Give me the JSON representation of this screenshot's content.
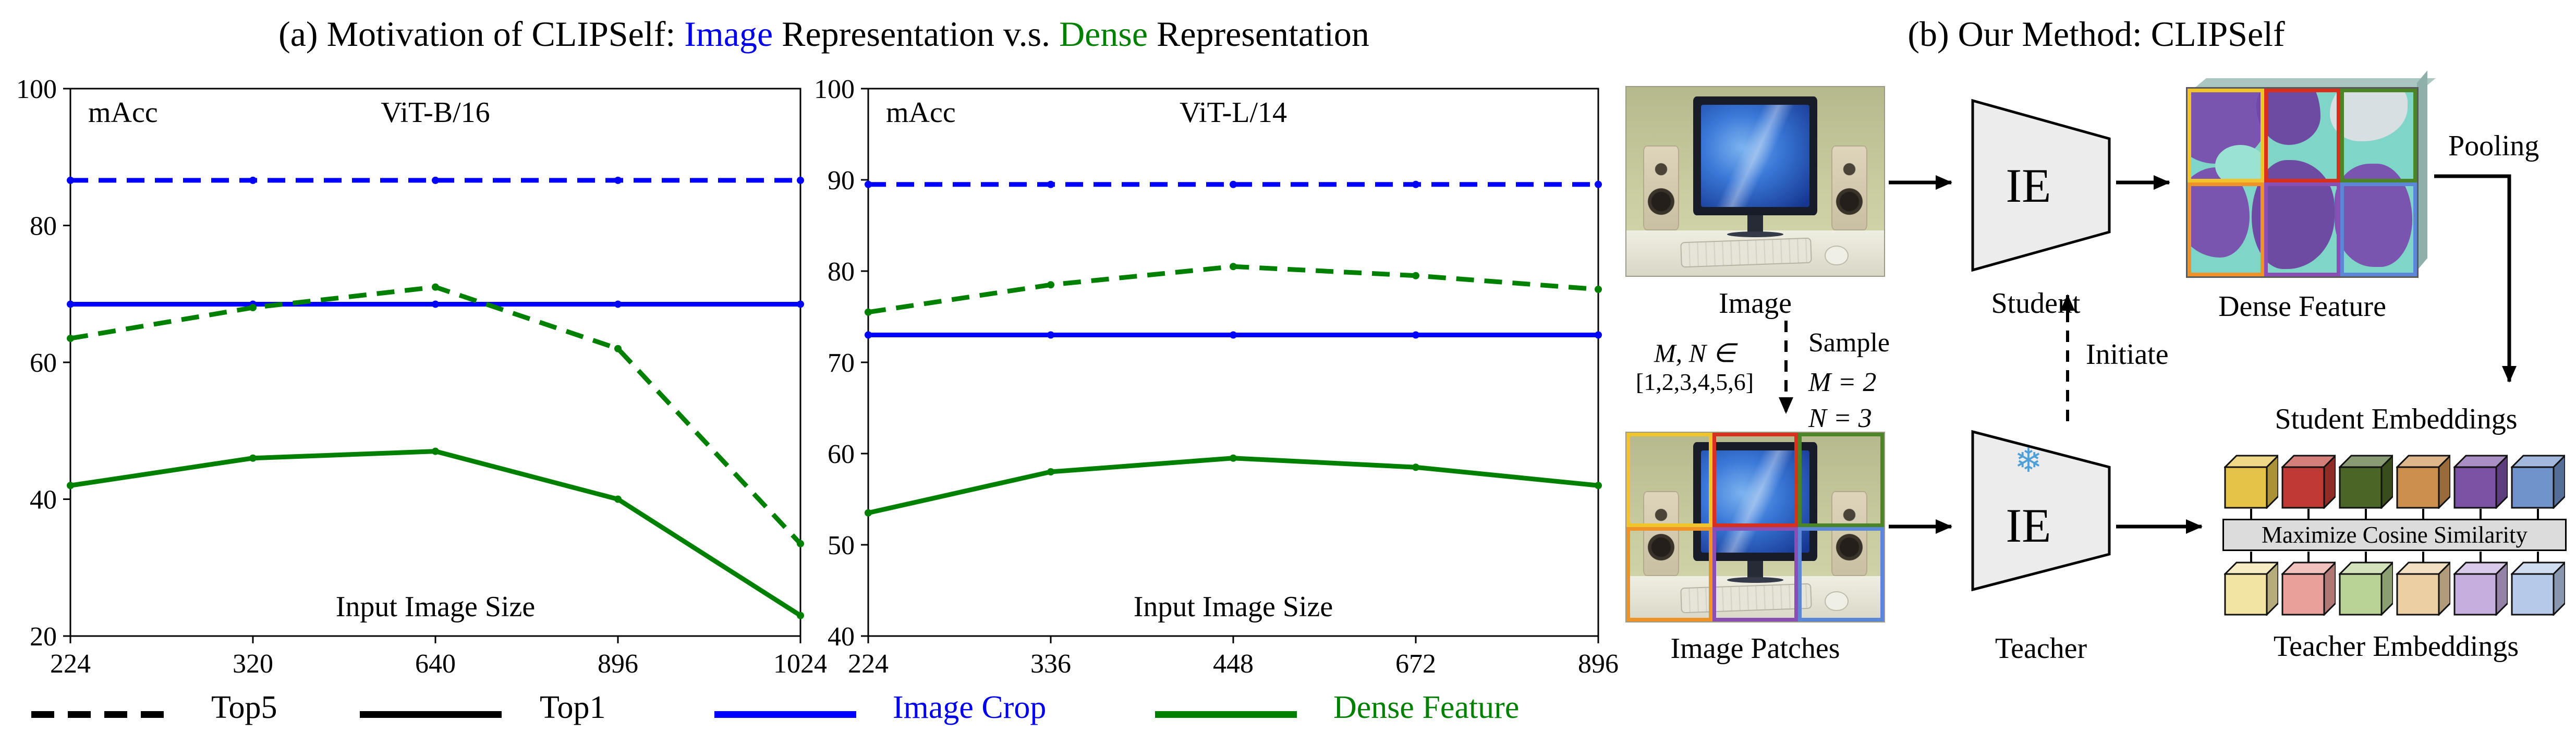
{
  "panel_a": {
    "title": {
      "prefix": "(a) Motivation of CLIPSelf: ",
      "image_word": "Image",
      "mid": " Representation v.s. ",
      "dense_word": "Dense",
      "suffix": " Representation"
    },
    "legend": [
      {
        "label": "Top5",
        "style": "dashed",
        "color": "#000000"
      },
      {
        "label": "Top1",
        "style": "solid",
        "color": "#000000"
      },
      {
        "label": "Image Crop",
        "style": "solid",
        "color": "#0000ff"
      },
      {
        "label": "Dense Feature",
        "style": "solid",
        "color": "#008000"
      }
    ]
  },
  "chart_data": [
    {
      "type": "line",
      "title": "ViT-B/16",
      "ylabel": "mAcc",
      "xlabel": "Input Image Size",
      "x_ticks": [
        "224",
        "320",
        "640",
        "896",
        "1024"
      ],
      "y_ticks": [
        20,
        40,
        60,
        80,
        100
      ],
      "ylim": [
        20,
        100
      ],
      "grid": false,
      "series": [
        {
          "name": "Image Crop Top5",
          "color": "#0000ff",
          "dash": true,
          "values": [
            86.6,
            86.6,
            86.6,
            86.6,
            86.6
          ]
        },
        {
          "name": "Image Crop Top1",
          "color": "#0000ff",
          "dash": false,
          "values": [
            68.5,
            68.5,
            68.5,
            68.5,
            68.5
          ]
        },
        {
          "name": "Dense Feature Top5",
          "color": "#008000",
          "dash": true,
          "values": [
            63.5,
            68.0,
            71.0,
            62.0,
            33.5
          ]
        },
        {
          "name": "Dense Feature Top1",
          "color": "#008000",
          "dash": false,
          "values": [
            42.0,
            46.0,
            47.0,
            40.0,
            23.0
          ]
        }
      ]
    },
    {
      "type": "line",
      "title": "ViT-L/14",
      "ylabel": "mAcc",
      "xlabel": "Input Image Size",
      "x_ticks": [
        "224",
        "336",
        "448",
        "672",
        "896"
      ],
      "y_ticks": [
        40,
        50,
        60,
        70,
        80,
        90,
        100
      ],
      "ylim": [
        40,
        100
      ],
      "grid": false,
      "series": [
        {
          "name": "Image Crop Top5",
          "color": "#0000ff",
          "dash": true,
          "values": [
            89.5,
            89.5,
            89.5,
            89.5,
            89.5
          ]
        },
        {
          "name": "Image Crop Top1",
          "color": "#0000ff",
          "dash": false,
          "values": [
            73.0,
            73.0,
            73.0,
            73.0,
            73.0
          ]
        },
        {
          "name": "Dense Feature Top5",
          "color": "#008000",
          "dash": true,
          "values": [
            75.5,
            78.5,
            80.5,
            79.5,
            78.0
          ]
        },
        {
          "name": "Dense Feature Top1",
          "color": "#008000",
          "dash": false,
          "values": [
            53.5,
            58.0,
            59.5,
            58.5,
            56.5
          ]
        }
      ]
    }
  ],
  "panel_b": {
    "title": "(b) Our Method: CLIPSelf",
    "image_caption": "Image",
    "student_label": "Student",
    "teacher_label": "Teacher",
    "ie_label": "IE",
    "snowflake_icon": "❄",
    "dense_feature_caption": "Dense Feature",
    "pooling_label": "Pooling",
    "student_embeddings_label": "Student Embeddings",
    "teacher_embeddings_label": "Teacher Embeddings",
    "cosine_box_label": "Maximize Cosine Similarity",
    "image_patches_caption": "Image Patches",
    "initiate_label": "Initiate",
    "sample": {
      "mn_line1": "M, N ∈",
      "mn_line2": "[1,2,3,4,5,6]",
      "sample_label": "Sample",
      "m_value": "M = 2",
      "n_value": "N = 3"
    },
    "patch_colors": [
      "#f2c42c",
      "#d8301f",
      "#4c8527",
      "#ef9227",
      "#8a4fb5",
      "#5c86d6"
    ],
    "student_cube_colors": [
      "#e5c348",
      "#bf3a34",
      "#4a6526",
      "#cc8f4e",
      "#7c52a5",
      "#7093cb"
    ],
    "teacher_cube_colors": [
      "#f2e4a2",
      "#eaa09a",
      "#b9d396",
      "#eccfa2",
      "#c6aede",
      "#b6c9e8"
    ]
  }
}
